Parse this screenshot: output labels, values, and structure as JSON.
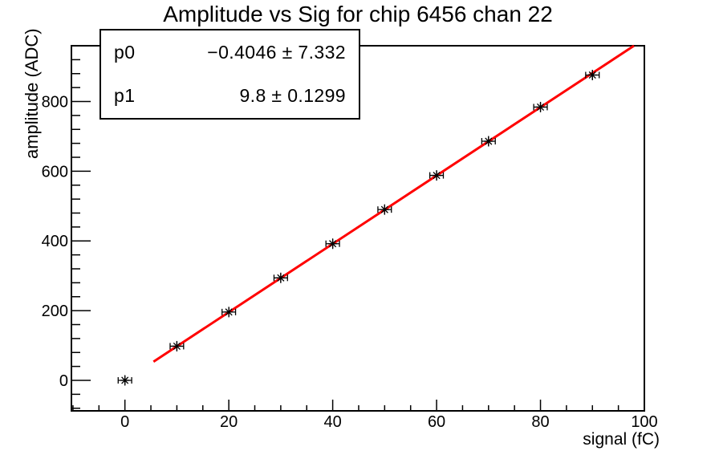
{
  "title": "Amplitude vs Sig for chip 6456 chan 22",
  "stats_box": {
    "rows": [
      {
        "label": "p0",
        "value": "−0.4046 ± 7.332"
      },
      {
        "label": "p1",
        "value": "9.8 ± 0.1299"
      }
    ]
  },
  "colors": {
    "background": "#ffffff",
    "axis": "#000000",
    "marker": "#000000",
    "fit_line": "#ff0000",
    "text": "#000000"
  },
  "chart_data": {
    "type": "scatter",
    "title": "Amplitude vs Sig for chip 6456 chan 22",
    "xlabel": "signal (fC)",
    "ylabel": "amplitude (ADC)",
    "x": [
      0,
      10,
      20,
      30,
      40,
      50,
      60,
      70,
      80,
      90
    ],
    "y": [
      0,
      98,
      196,
      294,
      392,
      490,
      588,
      686,
      784,
      876
    ],
    "xerr": 1.3,
    "yerr": 15,
    "xlim": [
      -10.3,
      100
    ],
    "ylim": [
      -87.5,
      960
    ],
    "x_major_ticks": [
      0,
      20,
      40,
      60,
      80,
      100
    ],
    "x_major_labels": [
      "0",
      "20",
      "40",
      "60",
      "80",
      "100"
    ],
    "x_minor_step": 5,
    "y_major_ticks": [
      0,
      200,
      400,
      600,
      800
    ],
    "y_major_labels": [
      "0",
      "200",
      "400",
      "600",
      "800"
    ],
    "y_minor_step": 40,
    "grid": false,
    "legend_position": "none",
    "marker": "asterisk",
    "fit": {
      "name": "linear",
      "p0": -0.4046,
      "p1": 9.8,
      "x_start": 5.5,
      "color": "#ff0000"
    }
  }
}
